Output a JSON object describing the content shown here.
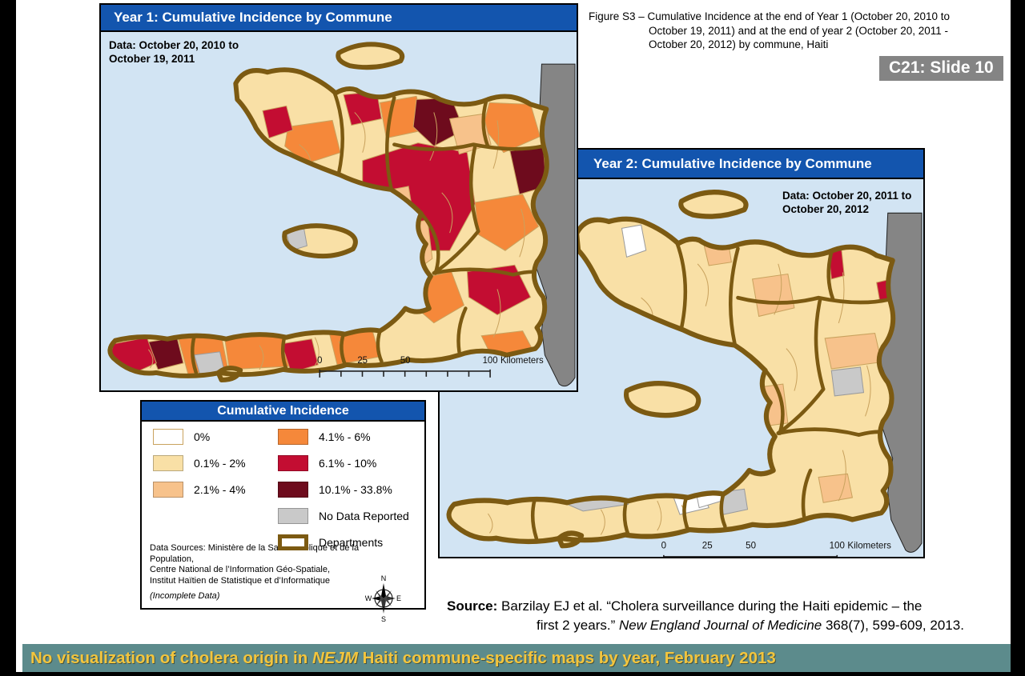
{
  "colors": {
    "title_bar_blue": "#1355AE",
    "sea": "#D2E4F3",
    "cream": "#F9E0A6",
    "peach": "#F7C28B",
    "orange": "#F5883A",
    "crimson": "#C30D32",
    "maroon": "#6E0B1D",
    "nodata": "#C9C9C9",
    "white": "#FFFFFF",
    "dr_gray": "#858585",
    "dept_brown": "#7C5A12",
    "commune_line": "#C9A25E",
    "banner_bg": "#5C8B8C",
    "banner_text": "#F3C53D",
    "tag_bg": "#848484"
  },
  "figure_caption": {
    "lines": [
      "Figure S3 – Cumulative Incidence at the end of Year 1 (October 20, 2010 to",
      "October 19, 2011) and at the end of year 2 (October 20, 2011 -",
      "October 20, 2012) by commune, Haiti"
    ]
  },
  "slide_tag": "C21: Slide 10",
  "year1": {
    "title": "Year 1: Cumulative Incidence by Commune",
    "data_note_line1": "Data: October 20, 2010 to",
    "data_note_line2": "October 19, 2011"
  },
  "year2": {
    "title": "Year 2: Cumulative Incidence by Commune",
    "data_note_line1": "Data: October 20, 2011 to",
    "data_note_line2": "October 20, 2012"
  },
  "scalebar": {
    "label_0": "0",
    "label_25": "25",
    "label_50": "50",
    "label_100": "100",
    "unit": "Kilometers"
  },
  "legend": {
    "title": "Cumulative Incidence",
    "items_left": [
      {
        "label": "0%",
        "color_key": "white"
      },
      {
        "label": "0.1% - 2%",
        "color_key": "cream"
      },
      {
        "label": "2.1% - 4%",
        "color_key": "peach"
      }
    ],
    "items_right": [
      {
        "label": "4.1% - 6%",
        "color_key": "orange"
      },
      {
        "label": "6.1% - 10%",
        "color_key": "crimson"
      },
      {
        "label": "10.1% - 33.8%",
        "color_key": "maroon"
      },
      {
        "label": "No Data Reported",
        "color_key": "nodata"
      },
      {
        "label": "Departments",
        "color_key": "white",
        "dept": true
      }
    ],
    "sources_lines": [
      "Data Sources: Ministère de la Santé Publique et de la Population,",
      "Centre National de l’Information Géo-Spatiale,",
      "Institut Haïtien de Statistique et d’Informatique"
    ],
    "incomplete": "(Incomplete Data)",
    "compass": {
      "n": "N",
      "e": "E",
      "s": "S",
      "w": "W"
    }
  },
  "source_block": {
    "line1": [
      {
        "b": "Source:"
      },
      {
        "t": " Barzilay EJ et al. “Cholera surveillance during the Haiti epidemic – the"
      }
    ],
    "line2": [
      {
        "t": "first 2 years.” "
      },
      {
        "i": "New England Journal of Medicine"
      },
      {
        "t": " 368(7), 599-609, 2013."
      }
    ]
  },
  "banner": {
    "segments": [
      {
        "t": "No visualization of cholera origin in "
      },
      {
        "i": "NEJM"
      },
      {
        "t": " Haiti commune-specific maps by year, February 2013"
      }
    ]
  }
}
